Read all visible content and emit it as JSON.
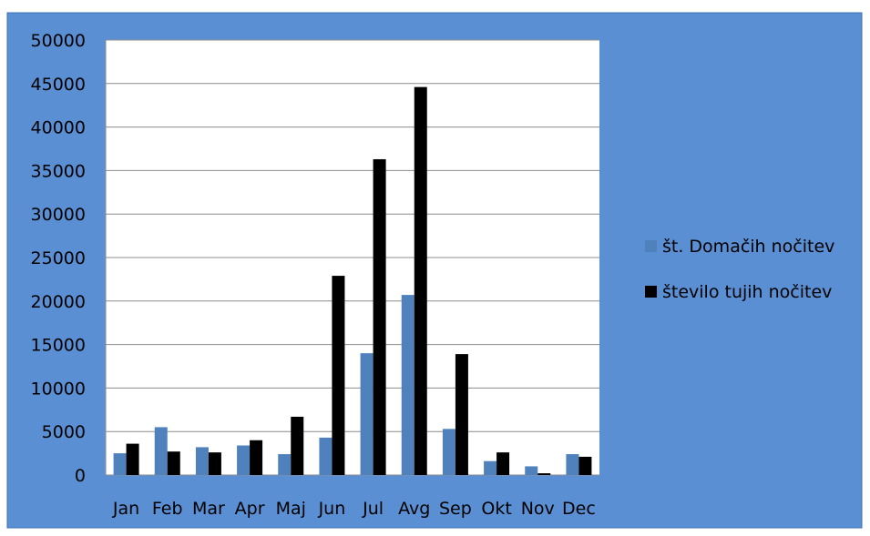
{
  "chart_data": {
    "type": "bar",
    "categories": [
      "Jan",
      "Feb",
      "Mar",
      "Apr",
      "Maj",
      "Jun",
      "Jul",
      "Avg",
      "Sep",
      "Okt",
      "Nov",
      "Dec"
    ],
    "series": [
      {
        "name": "št. Domačih nočitev",
        "color": "#4f81bd",
        "values": [
          2500,
          5500,
          3200,
          3400,
          2400,
          4300,
          14000,
          20700,
          5300,
          1600,
          1000,
          2400
        ]
      },
      {
        "name": "število tujih nočitev",
        "color": "#000000",
        "values": [
          3600,
          2700,
          2600,
          4000,
          6700,
          22900,
          36300,
          44600,
          13900,
          2600,
          200,
          2100
        ]
      }
    ],
    "ylim": [
      0,
      50000
    ],
    "yticks": [
      "0",
      "5000",
      "10000",
      "15000",
      "20000",
      "25000",
      "30000",
      "35000",
      "40000",
      "45000",
      "50000"
    ],
    "grid": true,
    "legend_position": "right",
    "background_color": "#5a8fd3",
    "plot_area_color": "#ffffff",
    "title": "",
    "xlabel": "",
    "ylabel": ""
  }
}
